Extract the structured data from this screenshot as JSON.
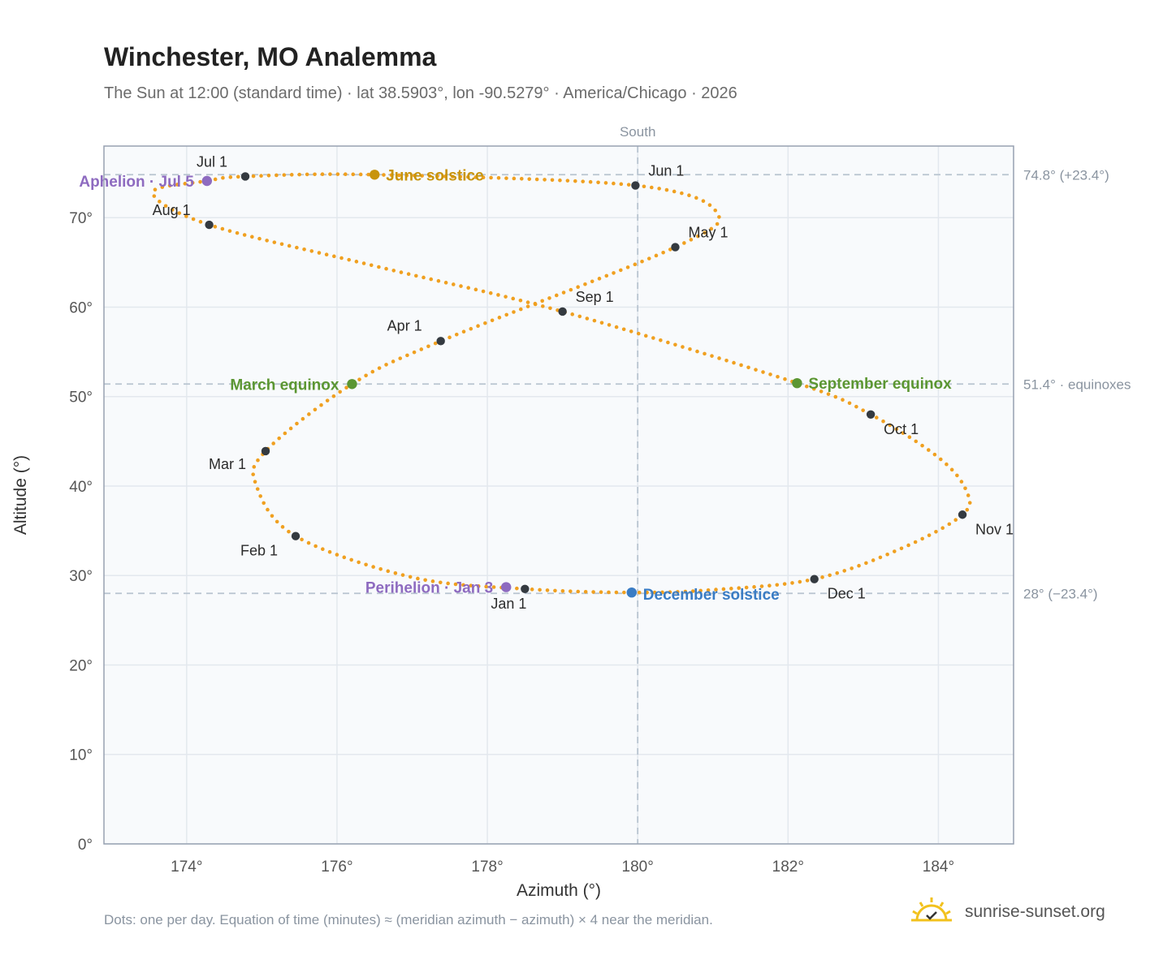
{
  "header": {
    "title": "Winchester, MO Analemma",
    "subtitle": "The Sun at 12:00 (standard time) · lat 38.5903°, lon -90.5279° · America/Chicago · 2026"
  },
  "footer": {
    "note": "Dots: one per day. Equation of time (minutes) ≈ (meridian azimuth − azimuth) × 4 near the meridian.",
    "brand": "sunrise-sunset.org"
  },
  "colors": {
    "curve": "#f0a020",
    "month_marker": "#343a40",
    "june_solstice": "#c8940c",
    "december_solstice": "#3a7cc4",
    "equinox": "#5b9632",
    "apsis": "#8e6bc0",
    "plot_bg": "#f8fafc",
    "grid": "#e3e8ee",
    "frame": "#97a1b1",
    "ref_line": "#b8c4d0"
  },
  "chart_data": {
    "type": "scatter",
    "xlabel": "Azimuth (°)",
    "ylabel": "Altitude (°)",
    "xlim": [
      172.9,
      185.0
    ],
    "ylim": [
      0,
      78
    ],
    "x_ticks": [
      174,
      176,
      178,
      180,
      182,
      184
    ],
    "x_tick_labels": [
      "174°",
      "176°",
      "178°",
      "180°",
      "182°",
      "184°"
    ],
    "y_ticks": [
      0,
      10,
      20,
      30,
      40,
      50,
      60,
      70
    ],
    "y_tick_labels": [
      "0°",
      "10°",
      "20°",
      "30°",
      "40°",
      "50°",
      "60°",
      "70°"
    ],
    "grid": true,
    "meridian": {
      "azimuth": 180,
      "label": "South"
    },
    "reference_lines": [
      {
        "altitude": 74.8,
        "label": "74.8° (+23.4°)"
      },
      {
        "altitude": 51.4,
        "label": "51.4° · equinoxes"
      },
      {
        "altitude": 28.0,
        "label": "28° (−23.4°)"
      }
    ],
    "month_markers": [
      {
        "label": "Jan 1",
        "az": 178.5,
        "alt": 28.5
      },
      {
        "label": "Feb 1",
        "az": 175.45,
        "alt": 34.4
      },
      {
        "label": "Mar 1",
        "az": 175.05,
        "alt": 43.9
      },
      {
        "label": "Apr 1",
        "az": 177.38,
        "alt": 56.2
      },
      {
        "label": "May 1",
        "az": 180.5,
        "alt": 66.7
      },
      {
        "label": "Jun 1",
        "az": 179.97,
        "alt": 73.6
      },
      {
        "label": "Jul 1",
        "az": 174.78,
        "alt": 74.6
      },
      {
        "label": "Aug 1",
        "az": 174.3,
        "alt": 69.2
      },
      {
        "label": "Sep 1",
        "az": 179.0,
        "alt": 59.5
      },
      {
        "label": "Oct 1",
        "az": 183.1,
        "alt": 48.0
      },
      {
        "label": "Nov 1",
        "az": 184.32,
        "alt": 36.8
      },
      {
        "label": "Dec 1",
        "az": 182.35,
        "alt": 29.6
      }
    ],
    "events": [
      {
        "label": "June solstice",
        "az": 176.5,
        "alt": 74.8,
        "color_key": "june_solstice"
      },
      {
        "label": "December solstice",
        "az": 179.92,
        "alt": 28.1,
        "color_key": "december_solstice"
      },
      {
        "label": "March equinox",
        "az": 176.2,
        "alt": 51.4,
        "color_key": "equinox"
      },
      {
        "label": "September equinox",
        "az": 182.12,
        "alt": 51.5,
        "color_key": "equinox"
      },
      {
        "label": "Aphelion · Jul 5",
        "az": 174.27,
        "alt": 74.1,
        "color_key": "apsis"
      },
      {
        "label": "Perihelion · Jan 3",
        "az": 178.25,
        "alt": 28.7,
        "color_key": "apsis"
      }
    ],
    "daily_path_keypoints": [
      {
        "az": 179.92,
        "alt": 28.1
      },
      {
        "az": 178.5,
        "alt": 28.5
      },
      {
        "az": 177.0,
        "alt": 29.8
      },
      {
        "az": 175.45,
        "alt": 34.4
      },
      {
        "az": 174.93,
        "alt": 40.0
      },
      {
        "az": 175.05,
        "alt": 43.9
      },
      {
        "az": 176.2,
        "alt": 51.4
      },
      {
        "az": 177.38,
        "alt": 56.2
      },
      {
        "az": 180.5,
        "alt": 66.7
      },
      {
        "az": 181.05,
        "alt": 70.6
      },
      {
        "az": 179.97,
        "alt": 73.6
      },
      {
        "az": 176.5,
        "alt": 74.8
      },
      {
        "az": 174.78,
        "alt": 74.6
      },
      {
        "az": 174.27,
        "alt": 74.1
      },
      {
        "az": 173.55,
        "alt": 72.8
      },
      {
        "az": 174.3,
        "alt": 69.2
      },
      {
        "az": 176.5,
        "alt": 64.6
      },
      {
        "az": 179.0,
        "alt": 59.5
      },
      {
        "az": 182.12,
        "alt": 51.5
      },
      {
        "az": 183.1,
        "alt": 48.0
      },
      {
        "az": 184.0,
        "alt": 43.2
      },
      {
        "az": 184.37,
        "alt": 39.5
      },
      {
        "az": 184.32,
        "alt": 36.8
      },
      {
        "az": 183.5,
        "alt": 33.0
      },
      {
        "az": 182.35,
        "alt": 29.6
      },
      {
        "az": 181.0,
        "alt": 28.4
      },
      {
        "az": 179.92,
        "alt": 28.1
      }
    ]
  }
}
